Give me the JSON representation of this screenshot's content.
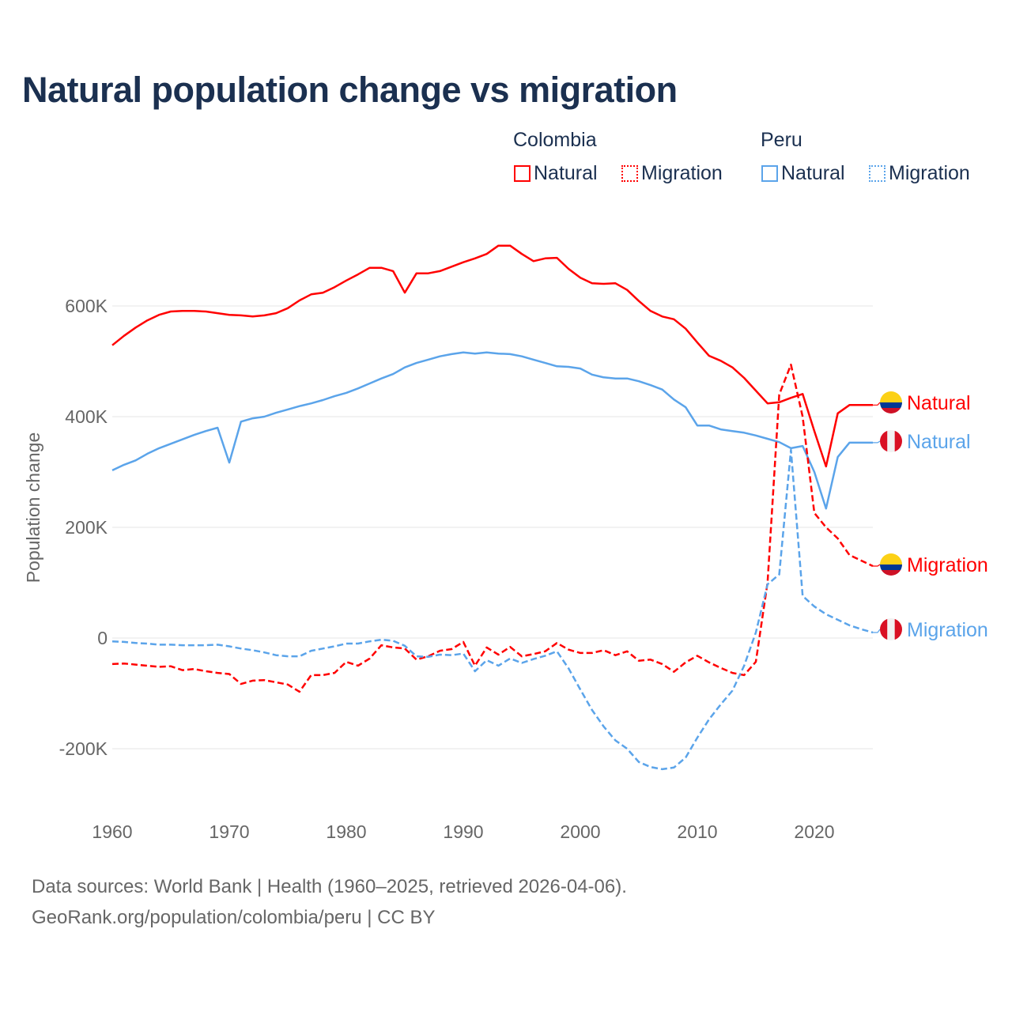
{
  "colors": {
    "colombia": "#ff0000",
    "peru": "#5ba4ea",
    "title": "#1b3050",
    "grid": "#e6e6e6",
    "axis_text": "#666666"
  },
  "legend": {
    "groups": [
      {
        "name": "Colombia",
        "items": [
          "Natural",
          "Migration"
        ]
      },
      {
        "name": "Peru",
        "items": [
          "Natural",
          "Migration"
        ]
      }
    ]
  },
  "footer": {
    "line1": "Data sources: World Bank | Health (1960–2025, retrieved 2026-04-06).",
    "line2": "GeoRank.org/population/colombia/peru | CC BY"
  },
  "chart_data": {
    "type": "line",
    "title": "Natural population change vs migration",
    "xlabel": "",
    "ylabel": "Population change",
    "xlim": [
      1960,
      2025
    ],
    "ylim": [
      -300000,
      750000
    ],
    "x_ticks": [
      1960,
      1970,
      1980,
      1990,
      2000,
      2010,
      2020
    ],
    "x_tick_labels": [
      "1960",
      "1970",
      "1980",
      "1990",
      "2000",
      "2010",
      "2020"
    ],
    "y_ticks": [
      -200000,
      0,
      200000,
      400000,
      600000
    ],
    "y_tick_labels": [
      "-200K",
      "0",
      "200K",
      "400K",
      "600K"
    ],
    "grid": true,
    "legend_position": "top-right",
    "x_start": 1960,
    "units": "thousands",
    "series": [
      {
        "name": "Colombia Natural",
        "country": "colombia",
        "style": "solid",
        "end_label": "Natural",
        "values": [
          529,
          546,
          561,
          574,
          584,
          590,
          591,
          591,
          590,
          587,
          584,
          583,
          581,
          583,
          587,
          596,
          610,
          621,
          624,
          634,
          646,
          657,
          669,
          669,
          663,
          624,
          659,
          659,
          663,
          671,
          679,
          686,
          694,
          709,
          709,
          694,
          681,
          686,
          687,
          667,
          651,
          641,
          640,
          641,
          629,
          609,
          591,
          581,
          576,
          559,
          534,
          510,
          501,
          489,
          470,
          447,
          424,
          426,
          434,
          441,
          374,
          310,
          406,
          421,
          421,
          421
        ]
      },
      {
        "name": "Peru Natural",
        "country": "peru",
        "style": "solid",
        "end_label": "Natural",
        "values": [
          303,
          313,
          321,
          333,
          343,
          351,
          359,
          367,
          374,
          380,
          317,
          391,
          397,
          400,
          407,
          413,
          419,
          424,
          430,
          437,
          443,
          451,
          460,
          469,
          477,
          489,
          497,
          503,
          509,
          513,
          516,
          514,
          516,
          514,
          513,
          509,
          503,
          497,
          491,
          490,
          487,
          476,
          471,
          469,
          469,
          464,
          457,
          449,
          431,
          417,
          384,
          384,
          377,
          374,
          371,
          366,
          360,
          354,
          343,
          347,
          300,
          234,
          327,
          353,
          353,
          353
        ]
      },
      {
        "name": "Colombia Migration",
        "country": "colombia",
        "style": "dashed",
        "end_label": "Migration",
        "values": [
          -47,
          -46,
          -48,
          -50,
          -52,
          -51,
          -58,
          -56,
          -60,
          -63,
          -65,
          -83,
          -77,
          -76,
          -80,
          -84,
          -97,
          -67,
          -67,
          -63,
          -43,
          -50,
          -37,
          -13,
          -17,
          -19,
          -39,
          -33,
          -23,
          -20,
          -7,
          -50,
          -17,
          -30,
          -16,
          -33,
          -29,
          -24,
          -9,
          -21,
          -27,
          -27,
          -22,
          -31,
          -24,
          -41,
          -39,
          -47,
          -61,
          -44,
          -32,
          -44,
          -54,
          -63,
          -67,
          -43,
          100,
          440,
          494,
          400,
          226,
          200,
          180,
          150,
          140,
          130
        ]
      },
      {
        "name": "Peru Migration",
        "country": "peru",
        "style": "dashed",
        "end_label": "Migration",
        "values": [
          -6,
          -7,
          -9,
          -10,
          -12,
          -12,
          -13,
          -13,
          -13,
          -12,
          -15,
          -19,
          -22,
          -26,
          -31,
          -33,
          -33,
          -23,
          -19,
          -15,
          -10,
          -10,
          -6,
          -3,
          -5,
          -14,
          -33,
          -34,
          -30,
          -31,
          -28,
          -60,
          -40,
          -50,
          -37,
          -45,
          -38,
          -32,
          -24,
          -55,
          -93,
          -130,
          -160,
          -185,
          -200,
          -224,
          -233,
          -237,
          -234,
          -216,
          -180,
          -147,
          -120,
          -95,
          -50,
          10,
          97,
          115,
          340,
          76,
          57,
          43,
          33,
          23,
          16,
          10
        ]
      }
    ]
  }
}
